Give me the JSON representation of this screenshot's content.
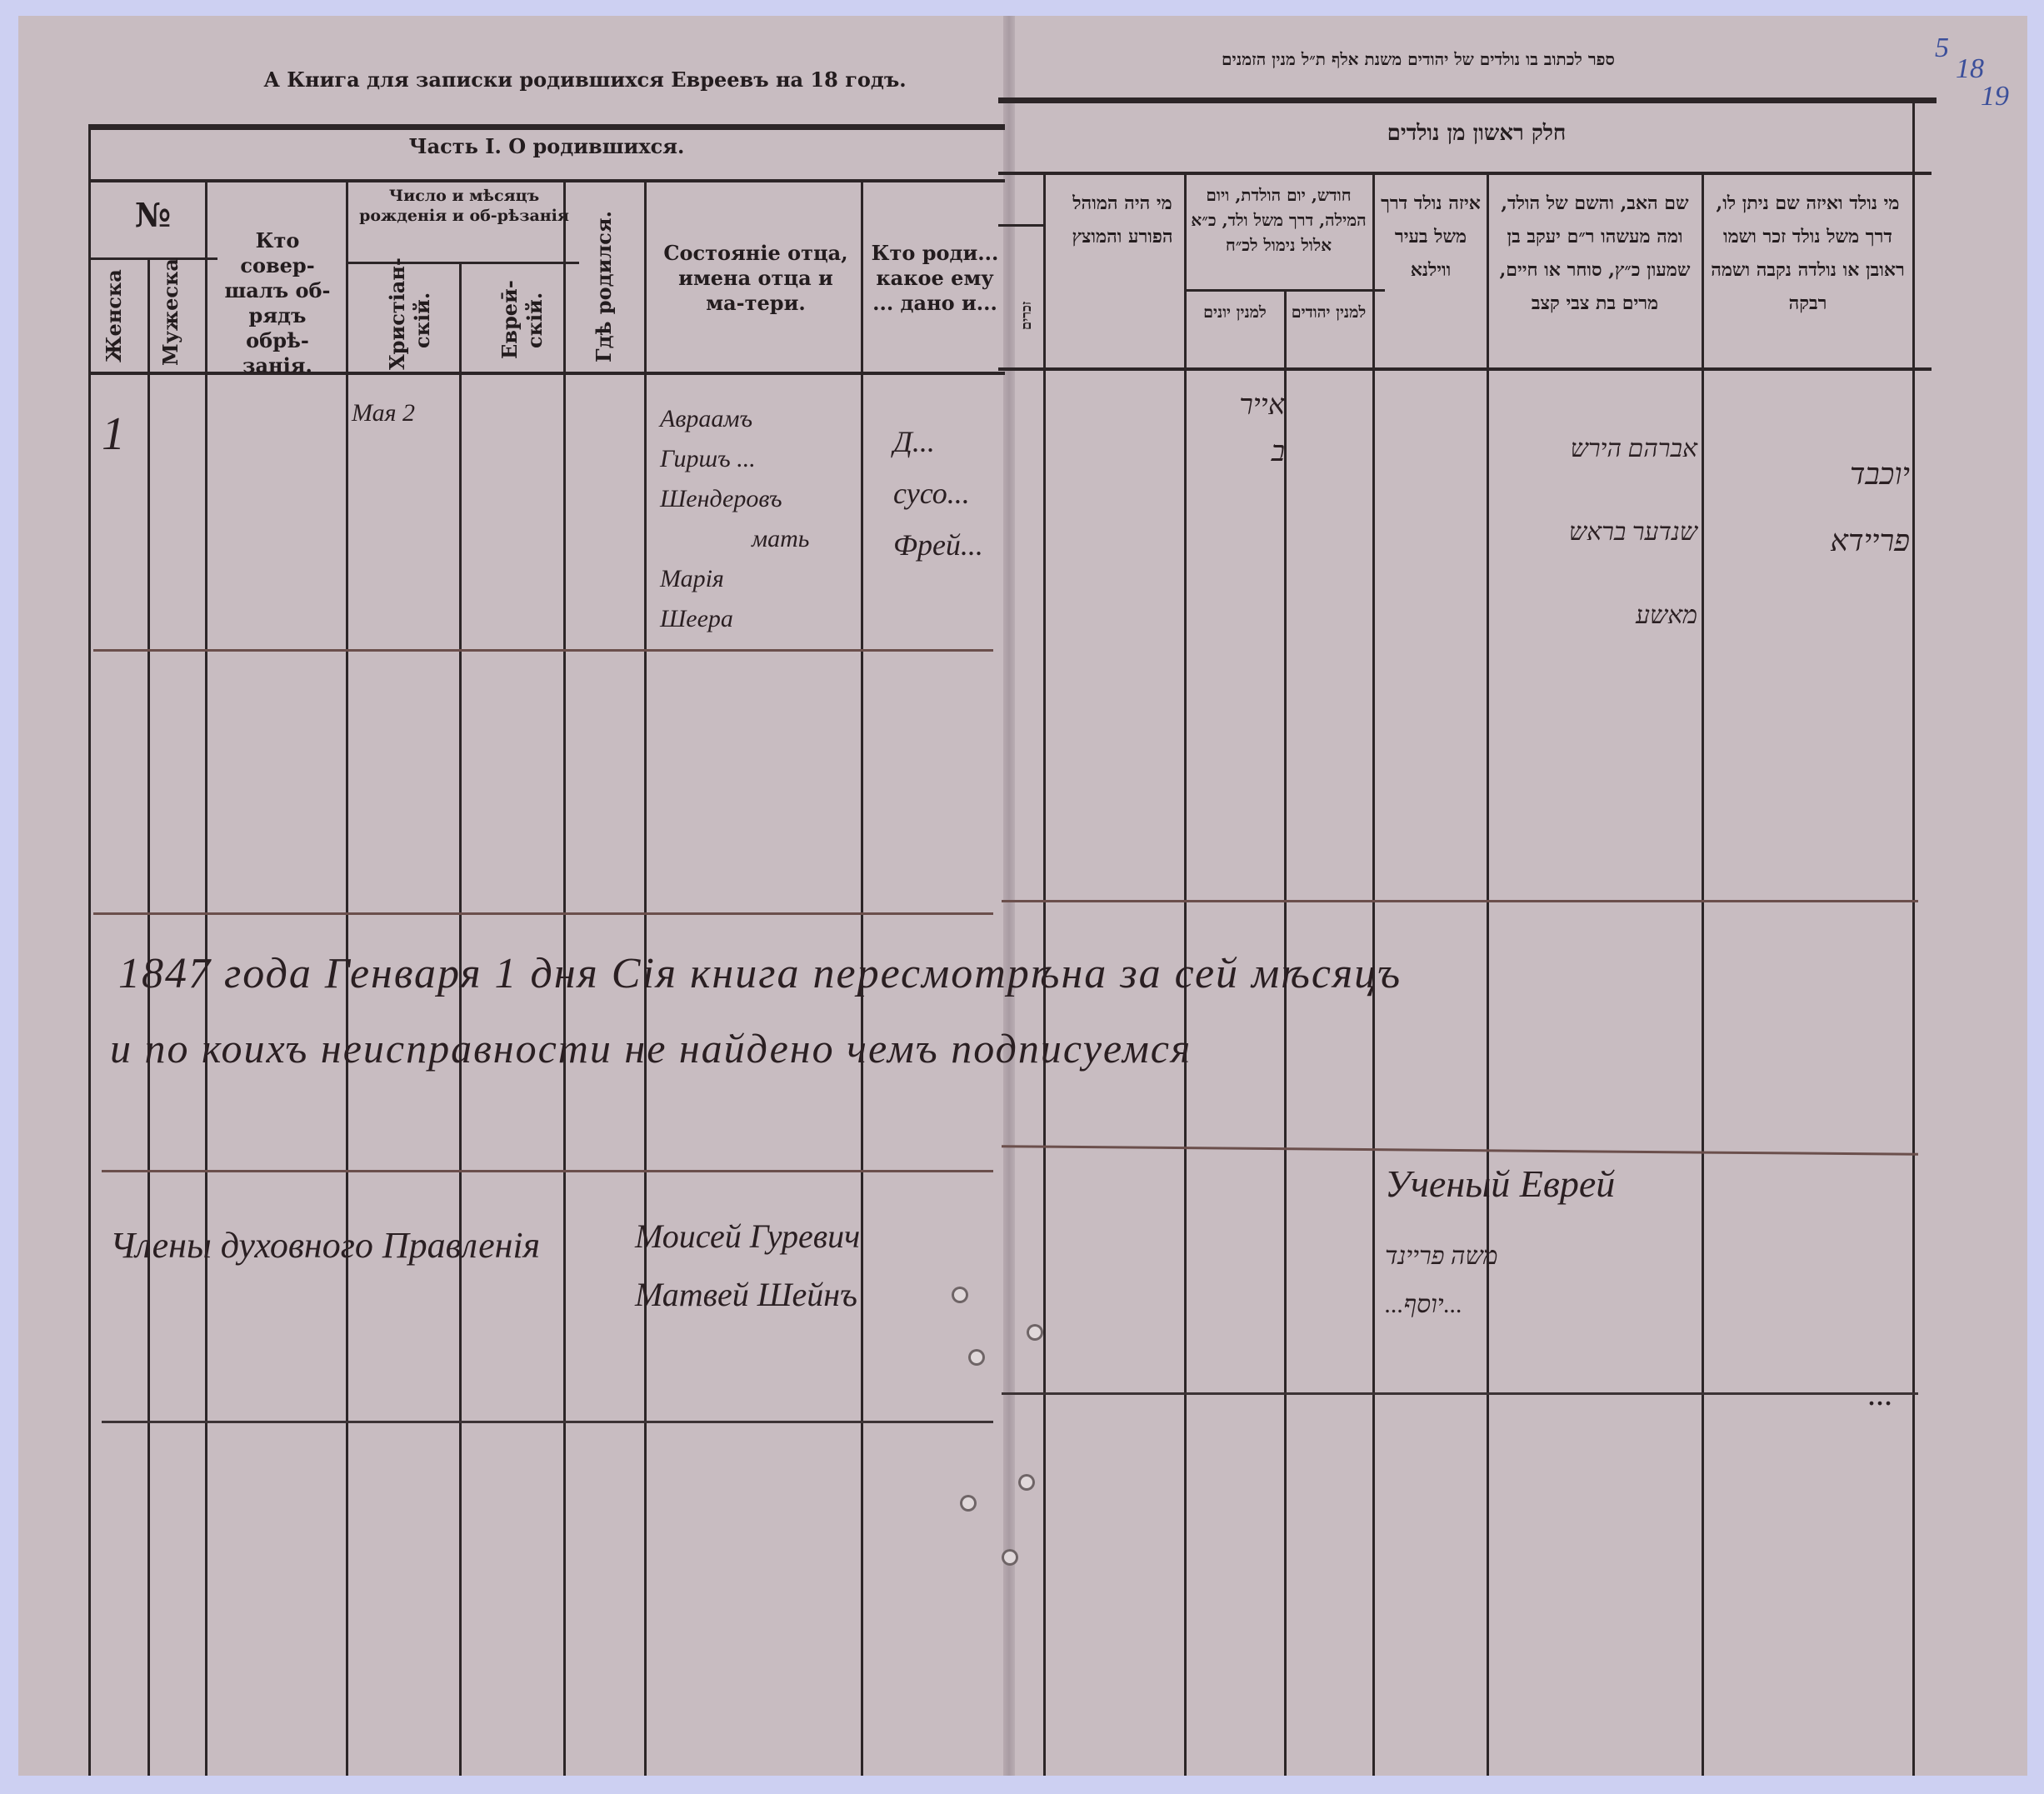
{
  "left_page": {
    "running_title": "А Книга для записки родившихся Евреевъ на 18        годъ.",
    "part_title": "Часть I. О родившихся.",
    "columns": {
      "number": "№",
      "female": "Женска",
      "male": "Мужеска",
      "who_performed": "Кто совер-шалъ об-рядъ обрѣ-занія.",
      "date_header": "Число и мѣсяцъ рожденія и об-рѣзанія",
      "christian": "Христіан-скій.",
      "jewish": "Евреӣ-скій.",
      "where_born": "Гдѣ родился.",
      "father_status": "Состояніе отца, имена отца и ма-тери.",
      "who_born": "Кто роди... какое ему ... дано и..."
    },
    "entry": {
      "number": "1",
      "christian_date": "Мая 2",
      "parents": [
        "Авраамъ",
        "Гиршъ ...",
        "Шендеровъ",
        "мать",
        "Марія",
        "Шеера"
      ],
      "who_born": [
        "Д...",
        "сусо...",
        "Фрей..."
      ]
    }
  },
  "right_page": {
    "running_title": "ספר לכתוב בו נולדים של יהודים משנת אלף ת״ל מנין הזמנים",
    "part_title": "חלק ראשון מן נולדים",
    "columns": {
      "circumciser": "מי היה המוהל הפורע והמוצץ",
      "date_header": "חודש, יום הולדת, ויום המילה, דרך משל ולד, כ״א אלול נימול לכ״ח",
      "greek": "למנין יונים",
      "jewish": "למנין יהודים",
      "where_born": "איזה נולד דרך משל בעיר ווילנא",
      "father_name": "שם האב, והשם של הולד, ומה מעשהו ר״ם יעקב בן שמעון כ״ץ, סוחר או חיים, מרים בת צבי קצב",
      "who_born": "מי נולד ואיזה שם ניתן לו, דרך משל נולד זכר ושמו ראובן או נולדה נקבה ושמה רבקה",
      "male_partial": "זכרים"
    },
    "entry": {
      "date": [
        "אייר",
        "ב"
      ],
      "father": [
        "אברהם הירש",
        "שנדער בראש",
        "מאשע"
      ],
      "child": [
        "יוכבד",
        "פריידא"
      ]
    },
    "folio": [
      "5",
      "18",
      "19"
    ]
  },
  "certification": {
    "line1": "1847 года Генваря 1 дня Сія книга пересмотрѣна за сей мѣсяцъ",
    "line2": "и по коихъ неисправности не найдено чемъ подписуемся",
    "board": "Члены духовного Правленія",
    "names": [
      "Моисей Гуревич",
      "Матвей Шейнъ"
    ],
    "rabbi": "Ученый Еврей",
    "hebrew_signature": [
      "משה פריינד",
      "...יוסף..."
    ],
    "right_scrawl": "..."
  },
  "colors": {
    "paper": "#c8bcc1",
    "frame": "#cdd0f2",
    "ink": "#2c2527",
    "folio_ink": "#3b4f9a"
  }
}
